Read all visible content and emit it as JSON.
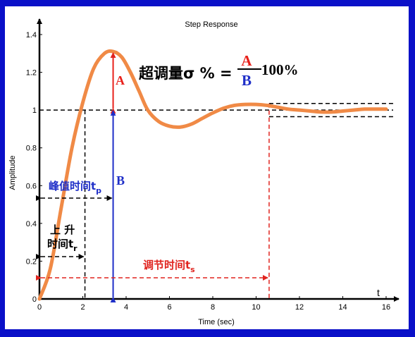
{
  "colors": {
    "background": "#0a10c8",
    "curve": "#f08a46",
    "overshoot": "#e8211b",
    "amplitude": "#1f2fc8",
    "settling": "#e0241f",
    "dashes": "#000000"
  },
  "chart_data": {
    "type": "line",
    "title": "Step Response",
    "xlabel": "Time (sec)",
    "ylabel": "Amplitude",
    "xlim": [
      0,
      16
    ],
    "ylim": [
      0,
      1.4
    ],
    "xticks": [
      0,
      2,
      4,
      6,
      8,
      10,
      12,
      14,
      16
    ],
    "yticks": [
      0,
      0.2,
      0.4,
      0.6,
      0.8,
      1,
      1.2,
      1.4
    ],
    "grid": false,
    "x": [
      0,
      0.5,
      1,
      1.5,
      2,
      2.5,
      3,
      3.4,
      3.8,
      4.2,
      4.6,
      5,
      5.5,
      6,
      6.5,
      7,
      7.5,
      8,
      8.5,
      9,
      9.5,
      10,
      10.5,
      11,
      11.5,
      12,
      12.5,
      13,
      13.5,
      14,
      14.5,
      15,
      15.5,
      16
    ],
    "y": [
      0,
      0.16,
      0.48,
      0.8,
      1.04,
      1.22,
      1.3,
      1.31,
      1.28,
      1.2,
      1.1,
      1.0,
      0.94,
      0.915,
      0.91,
      0.925,
      0.955,
      0.985,
      1.01,
      1.025,
      1.03,
      1.03,
      1.025,
      1.015,
      1.005,
      1.0,
      0.995,
      0.99,
      0.99,
      0.995,
      1.0,
      1.005,
      1.005,
      1.005
    ],
    "annotations": {
      "x_axis_letter": "t",
      "formula_prefix": "超调量σ % =",
      "formula_numerator": "A",
      "formula_denominator": "B",
      "formula_suffix": "100%",
      "label_A": "A",
      "label_B": "B",
      "peak_time": "峰值时间t",
      "peak_time_sub": "p",
      "rise_time_line1": "上 升",
      "rise_time_line2": "时间t",
      "rise_time_sub": "r",
      "settling_time": "调节时间t",
      "settling_time_sub": "s"
    },
    "markers": {
      "rise_time": 2.1,
      "peak_time": 3.4,
      "peak_value": 1.31,
      "settling_time": 10.6,
      "final_value": 1.0,
      "band_upper": 1.035,
      "band_lower": 0.965
    }
  }
}
